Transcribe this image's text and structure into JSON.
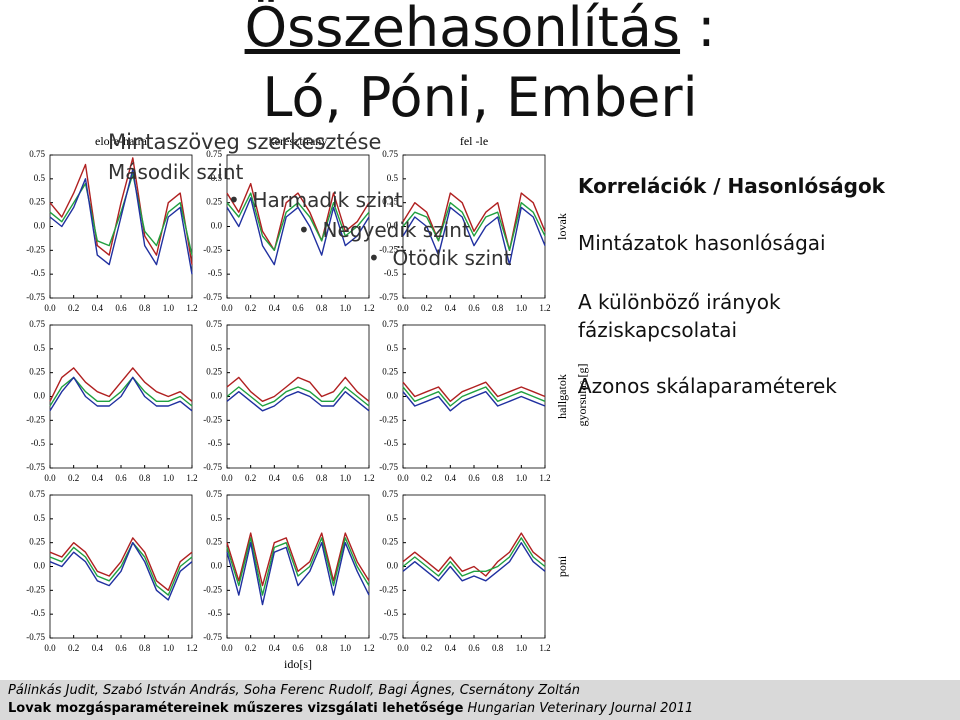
{
  "title_line1": "Összehasonlítás",
  "title_colon": " :",
  "title_line2": "Ló, Póni, Emberi",
  "placeholder": [
    "Mintaszöveg szerkesztése",
    "Második szint",
    "Harmadik szint",
    "Negyedik szint",
    "Ötödik szint"
  ],
  "notes": {
    "heading": "Korrelációk  / Hasonlóságok",
    "items": [
      "Mintázatok hasonlóságai",
      "A különböző irányok fáziskapcsolatai",
      "Azonos skálaparaméterek"
    ]
  },
  "y_axis_label": "gyorsulas [g]",
  "footer": {
    "authors": "Pálinkás Judit, Szabó István András, Soha Ferenc Rudolf, Bagi Ágnes, Csernátony Zoltán",
    "paper": "Lovak mozgásparamétereinek műszeres vizsgálati lehetősége",
    "journal": " Hungarian Veterinary Journal  2011"
  },
  "chart_data": [
    {
      "type": "line",
      "title": "elore-hatra",
      "x": [
        0,
        0.1,
        0.2,
        0.3,
        0.4,
        0.5,
        0.6,
        0.7,
        0.8,
        0.9,
        1,
        1.1,
        1.2
      ],
      "xlim": [
        0,
        1.2
      ],
      "ylim": [
        -0.75,
        0.75
      ],
      "xticks": [
        {
          "value": 0,
          "label": "0.0"
        },
        0.2,
        0.4,
        0.6,
        0.8,
        {
          "value": 1,
          "label": "1.0"
        },
        1.2
      ],
      "yticks": [
        0.75,
        0.5,
        0.25,
        {
          "value": 0,
          "label": "0.0"
        },
        -0.25,
        -0.5,
        -0.75
      ],
      "series": [
        {
          "color": "#b02020",
          "values": [
            0.25,
            0.1,
            0.35,
            0.65,
            -0.2,
            -0.3,
            0.25,
            0.72,
            -0.1,
            -0.3,
            0.25,
            0.35,
            -0.4
          ]
        },
        {
          "color": "#20a040",
          "values": [
            0.15,
            0.05,
            0.25,
            0.45,
            -0.15,
            -0.2,
            0.15,
            0.55,
            -0.05,
            -0.2,
            0.15,
            0.25,
            -0.3
          ]
        },
        {
          "color": "#2030a0",
          "values": [
            0.1,
            0.0,
            0.2,
            0.5,
            -0.3,
            -0.4,
            0.1,
            0.6,
            -0.2,
            -0.4,
            0.1,
            0.2,
            -0.5
          ]
        }
      ]
    },
    {
      "type": "line",
      "title": "keresztirany",
      "x": [
        0,
        0.1,
        0.2,
        0.3,
        0.4,
        0.5,
        0.6,
        0.7,
        0.8,
        0.9,
        1,
        1.1,
        1.2
      ],
      "xlim": [
        0,
        1.2
      ],
      "ylim": [
        -0.75,
        0.75
      ],
      "xticks": [
        {
          "value": 0,
          "label": "0.0"
        },
        0.2,
        0.4,
        0.6,
        0.8,
        {
          "value": 1,
          "label": "1.0"
        },
        1.2
      ],
      "yticks": [
        0.75,
        0.5,
        0.25,
        {
          "value": 0,
          "label": "0.0"
        },
        -0.25,
        -0.5,
        -0.75
      ],
      "series": [
        {
          "color": "#b02020",
          "values": [
            0.35,
            0.15,
            0.45,
            -0.05,
            -0.25,
            0.25,
            0.35,
            0.15,
            -0.15,
            0.35,
            -0.05,
            0.05,
            0.25
          ]
        },
        {
          "color": "#20a040",
          "values": [
            0.25,
            0.1,
            0.35,
            -0.1,
            -0.25,
            0.15,
            0.25,
            0.1,
            -0.15,
            0.25,
            -0.1,
            0.0,
            0.15
          ]
        },
        {
          "color": "#2030a0",
          "values": [
            0.2,
            0.0,
            0.3,
            -0.2,
            -0.4,
            0.1,
            0.2,
            0.0,
            -0.3,
            0.2,
            -0.2,
            -0.1,
            0.1
          ]
        }
      ]
    },
    {
      "type": "line",
      "title": "fel -le",
      "ylabel": "lovak",
      "x": [
        0,
        0.1,
        0.2,
        0.3,
        0.4,
        0.5,
        0.6,
        0.7,
        0.8,
        0.9,
        1,
        1.1,
        1.2
      ],
      "xlim": [
        0,
        1.2
      ],
      "ylim": [
        -0.75,
        0.75
      ],
      "xticks": [
        {
          "value": 0,
          "label": "0.0"
        },
        0.2,
        0.4,
        0.6,
        0.8,
        {
          "value": 1,
          "label": "1.0"
        },
        1.2
      ],
      "yticks": [
        0.75,
        0.5,
        0.25,
        {
          "value": 0,
          "label": "0.0"
        },
        -0.25,
        -0.5,
        -0.75
      ],
      "series": [
        {
          "color": "#b02020",
          "values": [
            0.05,
            0.25,
            0.15,
            -0.15,
            0.35,
            0.25,
            -0.05,
            0.15,
            0.25,
            -0.25,
            0.35,
            0.25,
            -0.05
          ]
        },
        {
          "color": "#20a040",
          "values": [
            0.0,
            0.15,
            0.1,
            -0.15,
            0.25,
            0.15,
            -0.1,
            0.1,
            0.15,
            -0.25,
            0.25,
            0.15,
            -0.1
          ]
        },
        {
          "color": "#2030a0",
          "values": [
            -0.1,
            0.1,
            0.0,
            -0.3,
            0.2,
            0.1,
            -0.2,
            0.0,
            0.1,
            -0.4,
            0.2,
            0.1,
            -0.2
          ]
        }
      ]
    },
    {
      "type": "line",
      "x": [
        0,
        0.1,
        0.2,
        0.3,
        0.4,
        0.5,
        0.6,
        0.7,
        0.8,
        0.9,
        1,
        1.1,
        1.2
      ],
      "xlim": [
        0,
        1.2
      ],
      "ylim": [
        -0.75,
        0.75
      ],
      "xticks": [
        {
          "value": 0,
          "label": "0.0"
        },
        0.2,
        0.4,
        0.6,
        0.8,
        {
          "value": 1,
          "label": "1.0"
        },
        1.2
      ],
      "yticks": [
        0.75,
        0.5,
        0.25,
        {
          "value": 0,
          "label": "0.0"
        },
        -0.25,
        -0.5,
        -0.75
      ],
      "series": [
        {
          "color": "#b02020",
          "values": [
            -0.05,
            0.2,
            0.3,
            0.15,
            0.05,
            0.0,
            0.15,
            0.3,
            0.15,
            0.05,
            0.0,
            0.05,
            -0.05
          ]
        },
        {
          "color": "#20a040",
          "values": [
            -0.1,
            0.1,
            0.2,
            0.05,
            -0.05,
            -0.05,
            0.05,
            0.2,
            0.05,
            -0.05,
            -0.05,
            0.0,
            -0.1
          ]
        },
        {
          "color": "#2030a0",
          "values": [
            -0.15,
            0.05,
            0.2,
            0.0,
            -0.1,
            -0.1,
            0.0,
            0.2,
            0.0,
            -0.1,
            -0.1,
            -0.05,
            -0.15
          ]
        }
      ]
    },
    {
      "type": "line",
      "x": [
        0,
        0.1,
        0.2,
        0.3,
        0.4,
        0.5,
        0.6,
        0.7,
        0.8,
        0.9,
        1,
        1.1,
        1.2
      ],
      "xlim": [
        0,
        1.2
      ],
      "ylim": [
        -0.75,
        0.75
      ],
      "xticks": [
        {
          "value": 0,
          "label": "0.0"
        },
        0.2,
        0.4,
        0.6,
        0.8,
        {
          "value": 1,
          "label": "1.0"
        },
        1.2
      ],
      "yticks": [
        0.75,
        0.5,
        0.25,
        {
          "value": 0,
          "label": "0.0"
        },
        -0.25,
        -0.5,
        -0.75
      ],
      "series": [
        {
          "color": "#b02020",
          "values": [
            0.1,
            0.2,
            0.05,
            -0.05,
            0.0,
            0.1,
            0.2,
            0.15,
            0.0,
            0.05,
            0.2,
            0.05,
            -0.05
          ]
        },
        {
          "color": "#20a040",
          "values": [
            0.0,
            0.1,
            0.0,
            -0.1,
            -0.05,
            0.05,
            0.1,
            0.05,
            -0.05,
            -0.05,
            0.1,
            0.0,
            -0.1
          ]
        },
        {
          "color": "#2030a0",
          "values": [
            -0.05,
            0.05,
            -0.05,
            -0.15,
            -0.1,
            0.0,
            0.05,
            0.0,
            -0.1,
            -0.1,
            0.05,
            -0.05,
            -0.15
          ]
        }
      ]
    },
    {
      "type": "line",
      "ylabel": "hallgatok",
      "x": [
        0,
        0.1,
        0.2,
        0.3,
        0.4,
        0.5,
        0.6,
        0.7,
        0.8,
        0.9,
        1,
        1.1,
        1.2
      ],
      "xlim": [
        0,
        1.2
      ],
      "ylim": [
        -0.75,
        0.75
      ],
      "xticks": [
        {
          "value": 0,
          "label": "0.0"
        },
        0.2,
        0.4,
        0.6,
        0.8,
        {
          "value": 1,
          "label": "1.0"
        },
        1.2
      ],
      "yticks": [
        0.75,
        0.5,
        0.25,
        {
          "value": 0,
          "label": "0.0"
        },
        -0.25,
        -0.5,
        -0.75
      ],
      "series": [
        {
          "color": "#b02020",
          "values": [
            0.15,
            0.0,
            0.05,
            0.1,
            -0.05,
            0.05,
            0.1,
            0.15,
            0.0,
            0.05,
            0.1,
            0.05,
            0.0
          ]
        },
        {
          "color": "#20a040",
          "values": [
            0.1,
            -0.05,
            0.0,
            0.05,
            -0.1,
            0.0,
            0.05,
            0.1,
            -0.05,
            0.0,
            0.05,
            0.0,
            -0.05
          ]
        },
        {
          "color": "#2030a0",
          "values": [
            0.05,
            -0.1,
            -0.05,
            0.0,
            -0.15,
            -0.05,
            0.0,
            0.05,
            -0.1,
            -0.05,
            0.0,
            -0.05,
            -0.1
          ]
        }
      ]
    },
    {
      "type": "line",
      "x": [
        0,
        0.1,
        0.2,
        0.3,
        0.4,
        0.5,
        0.6,
        0.7,
        0.8,
        0.9,
        1,
        1.1,
        1.2
      ],
      "xlim": [
        0,
        1.2
      ],
      "ylim": [
        -0.75,
        0.75
      ],
      "xticks": [
        {
          "value": 0,
          "label": "0.0"
        },
        0.2,
        0.4,
        0.6,
        0.8,
        {
          "value": 1,
          "label": "1.0"
        },
        1.2
      ],
      "yticks": [
        0.75,
        0.5,
        0.25,
        {
          "value": 0,
          "label": "0.0"
        },
        -0.25,
        -0.5,
        -0.75
      ],
      "series": [
        {
          "color": "#b02020",
          "values": [
            0.15,
            0.1,
            0.25,
            0.15,
            -0.05,
            -0.1,
            0.05,
            0.3,
            0.15,
            -0.15,
            -0.25,
            0.05,
            0.15
          ]
        },
        {
          "color": "#20a040",
          "values": [
            0.1,
            0.05,
            0.2,
            0.1,
            -0.1,
            -0.15,
            0.0,
            0.25,
            0.1,
            -0.2,
            -0.3,
            0.0,
            0.1
          ]
        },
        {
          "color": "#2030a0",
          "values": [
            0.05,
            0.0,
            0.15,
            0.05,
            -0.15,
            -0.2,
            -0.05,
            0.25,
            0.05,
            -0.25,
            -0.35,
            -0.05,
            0.05
          ]
        }
      ]
    },
    {
      "type": "line",
      "xlabel": "ido[s]",
      "x": [
        0,
        0.1,
        0.2,
        0.3,
        0.4,
        0.5,
        0.6,
        0.7,
        0.8,
        0.9,
        1,
        1.1,
        1.2
      ],
      "xlim": [
        0,
        1.2
      ],
      "ylim": [
        -0.75,
        0.75
      ],
      "xticks": [
        {
          "value": 0,
          "label": "0.0"
        },
        0.2,
        0.4,
        0.6,
        0.8,
        {
          "value": 1,
          "label": "1.0"
        },
        1.2
      ],
      "yticks": [
        0.75,
        0.5,
        0.25,
        {
          "value": 0,
          "label": "0.0"
        },
        -0.25,
        -0.5,
        -0.75
      ],
      "series": [
        {
          "color": "#b02020",
          "values": [
            0.25,
            -0.15,
            0.35,
            -0.2,
            0.25,
            0.3,
            -0.05,
            0.05,
            0.35,
            -0.15,
            0.35,
            0.05,
            -0.15
          ]
        },
        {
          "color": "#20a040",
          "values": [
            0.2,
            -0.2,
            0.3,
            -0.3,
            0.2,
            0.25,
            -0.1,
            0.0,
            0.3,
            -0.2,
            0.3,
            0.0,
            -0.2
          ]
        },
        {
          "color": "#2030a0",
          "values": [
            0.15,
            -0.3,
            0.25,
            -0.4,
            0.15,
            0.2,
            -0.2,
            -0.05,
            0.25,
            -0.3,
            0.25,
            -0.05,
            -0.3
          ]
        }
      ]
    },
    {
      "type": "line",
      "ylabel": "poni",
      "x": [
        0,
        0.1,
        0.2,
        0.3,
        0.4,
        0.5,
        0.6,
        0.7,
        0.8,
        0.9,
        1,
        1.1,
        1.2
      ],
      "xlim": [
        0,
        1.2
      ],
      "ylim": [
        -0.75,
        0.75
      ],
      "xticks": [
        {
          "value": 0,
          "label": "0.0"
        },
        0.2,
        0.4,
        0.6,
        0.8,
        {
          "value": 1,
          "label": "1.0"
        },
        1.2
      ],
      "yticks": [
        0.75,
        0.5,
        0.25,
        {
          "value": 0,
          "label": "0.0"
        },
        -0.25,
        -0.5,
        -0.75
      ],
      "series": [
        {
          "color": "#b02020",
          "values": [
            0.05,
            0.15,
            0.05,
            -0.05,
            0.1,
            -0.05,
            0.0,
            -0.1,
            0.05,
            0.15,
            0.35,
            0.15,
            0.05
          ]
        },
        {
          "color": "#20a040",
          "values": [
            0.0,
            0.1,
            0.0,
            -0.1,
            0.05,
            -0.1,
            -0.05,
            -0.05,
            0.0,
            0.1,
            0.3,
            0.1,
            0.0
          ]
        },
        {
          "color": "#2030a0",
          "values": [
            -0.05,
            0.05,
            -0.05,
            -0.15,
            0.0,
            -0.15,
            -0.1,
            -0.15,
            -0.05,
            0.05,
            0.25,
            0.05,
            -0.05
          ]
        }
      ]
    }
  ]
}
